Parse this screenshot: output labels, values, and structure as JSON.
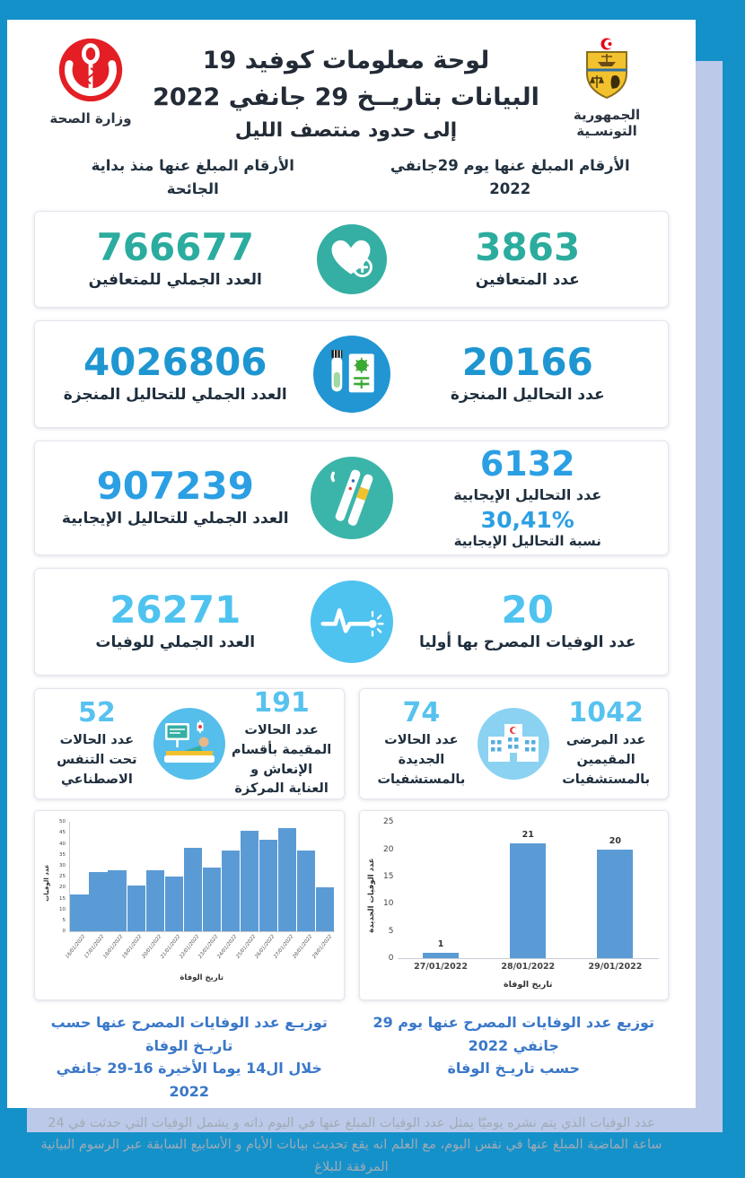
{
  "page": {
    "bg_color": "#1591CA",
    "back_sheet_color": "#BDC9E9"
  },
  "header": {
    "title_line1": "لوحة معلومات كوفيد 19",
    "title_line2": "البيانات بتاريــخ 29 جانفي 2022",
    "title_line3": "إلى حدود منتصف الليل",
    "ministry_logo_label": "وزارة الصحة",
    "republic_logo_label": "الجمهورية التونسـية"
  },
  "columns": {
    "cumulative_header": "الأرقام المبلغ عنها منذ بداية الجائحة",
    "daily_header": "الأرقام المبلغ عنها يوم 29جانفي 2022"
  },
  "stats": {
    "rows": [
      {
        "name": "recovered",
        "accent": "#2BAC9E",
        "icon_bg": "#35AFA3",
        "total_value": "766677",
        "total_label": "العدد الجملي للمتعافين",
        "daily_value": "3863",
        "daily_label": "عدد المتعافين"
      },
      {
        "name": "tests-performed",
        "accent": "#1E96D1",
        "icon_bg": "#2196D3",
        "total_value": "4026806",
        "total_label": "العدد الجملي للتحاليل المنجزة",
        "daily_value": "20166",
        "daily_label": "عدد التحاليل المنجزة"
      },
      {
        "name": "positive-tests",
        "accent": "#2B9FE3",
        "icon_bg": "#3BB5A9",
        "total_value": "907239",
        "total_label": "العدد الجملي للتحاليل الإيجابية",
        "daily_value": "6132",
        "daily_label": "عدد التحاليل الإيجابية",
        "positivity_value": "30,41%",
        "positivity_label": "نسبة التحاليل الإيجابية"
      },
      {
        "name": "deaths",
        "accent": "#4EC3F0",
        "icon_bg": "#4EC3F0",
        "total_value": "26271",
        "total_label": "العدد الجملي للوفيات",
        "daily_value": "20",
        "daily_label": "عدد الوفيات المصرح بها أوليا"
      }
    ]
  },
  "care_cards": {
    "accent": "#57C2EF",
    "icu": {
      "left_value": "52",
      "left_label": "عدد الحالات تحت التنفس الاصطناعي",
      "right_value": "191",
      "right_label": "عدد الحالات المقيمة بأقسام الإنعاش و العناية المركزة"
    },
    "hospital": {
      "left_value": "74",
      "left_label": "عدد الحالات الجديدة بالمستشفيات",
      "right_value": "1042",
      "right_label": "عدد المرضى المقيمين بالمستشفيات"
    }
  },
  "chart_data": [
    {
      "id": "deaths-by-death-date-last-14-days",
      "type": "bar",
      "title": "توزيـع عدد الوفايات المصرح عنها حسب تاريـخ الوفاة خلال ال14 يوما الأخيرة 16-29 جانفي 2022",
      "caption_line1": "توزيـع عدد الوفايات المصرح عنها حسب تاريـخ الوفاة",
      "caption_line2": "خلال ال14 يوما الأخيرة 16-29 جانفي 2022",
      "xlabel": "تاريخ الوفاة",
      "ylabel": "عدد الوفيات",
      "categories": [
        "16/01/2022",
        "17/01/2022",
        "18/01/2022",
        "19/01/2022",
        "20/01/2022",
        "21/01/2022",
        "22/01/2022",
        "23/01/2022",
        "24/01/2022",
        "25/01/2022",
        "26/01/2022",
        "27/01/2022",
        "28/01/2022",
        "29/01/2022"
      ],
      "values": [
        17,
        27,
        28,
        21,
        28,
        25,
        38,
        29,
        37,
        46,
        42,
        47,
        37,
        20
      ],
      "ylim": [
        0,
        50
      ],
      "ytick_step": 5,
      "bar_color": "#5B9BD5",
      "data_labels": false,
      "grid": false,
      "legend": "none"
    },
    {
      "id": "deaths-reported-29-01-2022-by-death-date",
      "type": "bar",
      "title": "توزيع عدد الوفايات المصرح عنها يوم 29  جانفي 2022 حسب تاريـخ الوفاة",
      "caption_line1": "توزيع عدد الوفايات المصرح عنها يوم 29  جانفي 2022",
      "caption_line2": "حسب تاريـخ الوفاة",
      "xlabel": "تاريخ الوفاة",
      "ylabel": "عدد الوفيات الجديدة",
      "categories": [
        "27/01/2022",
        "28/01/2022",
        "29/01/2022"
      ],
      "values": [
        1,
        21,
        20
      ],
      "ylim": [
        0,
        25
      ],
      "ytick_step": 5,
      "bar_color": "#5B9BD5",
      "data_labels": true,
      "grid": false,
      "legend": "none"
    }
  ],
  "footer": {
    "text": "عدد الوفيات الذي يتم نشره يوميّا يمثل عدد الوفيات المبلغ عنها في اليوم ذاته و يشمل الوفيات التي حدثت في 24 ساعة الماضية المبلغ عنها في نفس اليوم، مع العلم انه يقع تحديث بيانات الأيام و الأسابيع السابقة عبر الرسوم البيانية المرفقة للبلاغ"
  }
}
